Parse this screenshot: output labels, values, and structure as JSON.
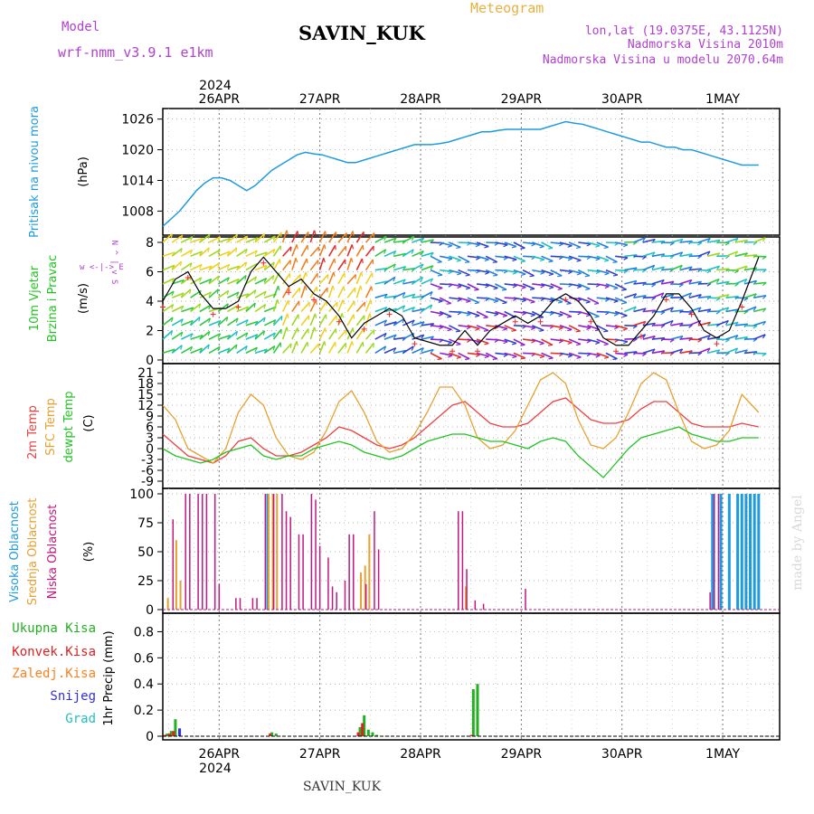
{
  "header": {
    "model_label": "Model",
    "model_name": "wrf-nmm_v3.9.1  e1km",
    "station": "SAVIN_KUK",
    "app_title": "Meteogram",
    "lonlat": "lon,lat (19.0375E, 43.1125N)",
    "altitude": "Nadmorska Visina 2010m",
    "model_altitude": "Nadmorska Visina u modelu 2070.64m"
  },
  "footer": {
    "station": "SAVIN_KUK",
    "watermark": "made by Angel"
  },
  "colors": {
    "pressure": "#1e9be0",
    "wind_speed": "#000000",
    "gust": "#ff2020",
    "temp": "#ef4040",
    "sfc_temp": "#e8a030",
    "dewpt": "#22c422",
    "high_cloud": "#1e9be0",
    "mid_cloud": "#e8a030",
    "low_cloud": "#c2187f",
    "total_precip": "#22b022",
    "conv_precip": "#e02020",
    "frz_precip": "#ff8020",
    "snow": "#3030e0",
    "graupel": "#20c0c0",
    "title_purple": "#b040d0",
    "title_gold": "#e8b040"
  },
  "axis": {
    "year": "2024",
    "dates": [
      "26APR",
      "27APR",
      "28APR",
      "29APR",
      "30APR",
      "1MAY"
    ],
    "bottom_year": "2024"
  },
  "panels": {
    "pressure": {
      "label_main": "Pritisak na nivou mora",
      "label_unit": "(hPa)",
      "ticks": [
        "1026",
        "1020",
        "1014",
        "1008"
      ]
    },
    "wind": {
      "label_1": "10m Vjetar",
      "label_2": "Brzina i Pravac",
      "label_unit": "(m/s)",
      "compass": "w <-|-> E",
      "compass_ns": "N ^ | v S",
      "ticks": [
        "8",
        "6",
        "4",
        "2",
        "0"
      ]
    },
    "temp": {
      "label_1": "2m Temp",
      "label_2": "SFC Temp",
      "label_3": "dewpt Temp",
      "label_unit": "(C)",
      "ticks": [
        "21",
        "18",
        "15",
        "12",
        "9",
        "6",
        "3",
        "0",
        "-3",
        "-6",
        "-9"
      ]
    },
    "cloud": {
      "label_1": "Visoka Oblacnost",
      "label_2": "Srednja Oblacnost",
      "label_3": "Niska Oblacnost",
      "label_unit": "(%)",
      "ticks": [
        "100",
        "75",
        "50",
        "25",
        "0"
      ]
    },
    "precip": {
      "legend": [
        "Ukupna Kisa",
        "Konvek.Kisa",
        "Zaledj.Kisa",
        "Snijeg",
        "Grad"
      ],
      "label_unit": "1hr Precip (mm)",
      "ticks": [
        "0.8",
        "0.6",
        "0.4",
        "0.2",
        "0"
      ]
    }
  },
  "chart_data": [
    {
      "type": "line",
      "name": "pressure",
      "ylim": [
        1004,
        1027
      ],
      "x_hours": [
        0,
        2,
        4,
        6,
        8,
        10,
        12,
        14,
        16,
        18,
        20,
        22,
        24,
        26,
        28,
        30,
        32,
        34,
        36,
        38,
        40,
        42,
        44,
        46,
        48,
        50,
        52,
        54,
        56,
        58,
        60,
        62,
        64,
        66,
        68,
        70,
        72,
        74,
        76,
        78,
        80,
        82,
        84,
        86,
        88,
        90,
        92,
        94,
        96,
        98,
        100,
        102,
        104,
        106,
        108,
        110,
        112,
        114,
        116,
        118,
        120,
        122,
        124,
        126,
        128,
        130,
        132,
        134,
        136,
        138,
        140,
        142
      ],
      "values": [
        1005,
        1006.5,
        1008,
        1010,
        1012,
        1013.5,
        1014.5,
        1014.5,
        1014,
        1013,
        1012,
        1013,
        1014.5,
        1016,
        1017,
        1018,
        1019,
        1019.5,
        1019.2,
        1019,
        1018.5,
        1018,
        1017.5,
        1017.5,
        1018,
        1018.5,
        1019,
        1019.5,
        1020,
        1020.5,
        1021,
        1021,
        1021,
        1021.2,
        1021.5,
        1022,
        1022.5,
        1023,
        1023.5,
        1023.5,
        1023.8,
        1024,
        1024,
        1024,
        1024,
        1024,
        1024.5,
        1025,
        1025.5,
        1025.2,
        1025,
        1024.5,
        1024,
        1023.5,
        1023,
        1022.5,
        1022,
        1021.5,
        1021.5,
        1021,
        1020.5,
        1020.5,
        1020,
        1020,
        1019.5,
        1019,
        1018.5,
        1018,
        1017.5,
        1017,
        1017,
        1017
      ]
    },
    {
      "type": "line",
      "name": "wind_speed",
      "ylim": [
        0,
        8
      ],
      "x_hours": [
        0,
        3,
        6,
        9,
        12,
        15,
        18,
        21,
        24,
        27,
        30,
        33,
        36,
        39,
        42,
        45,
        48,
        51,
        54,
        57,
        60,
        66,
        69,
        72,
        75,
        78,
        84,
        87,
        90,
        93,
        96,
        99,
        102,
        105,
        108,
        111,
        114,
        117,
        120,
        123,
        126,
        129,
        132,
        135,
        138,
        142
      ],
      "values": [
        4,
        5.5,
        6,
        4.5,
        3.5,
        3.5,
        4,
        6,
        7,
        6,
        5,
        5.5,
        4.5,
        4,
        3,
        1.5,
        2.5,
        3,
        3.5,
        3,
        1.5,
        1,
        1,
        2,
        1,
        2,
        3,
        2.5,
        3,
        4,
        4.5,
        4,
        3,
        1.5,
        1,
        1,
        2,
        3,
        4.5,
        4.5,
        3.5,
        2,
        1.5,
        2,
        4,
        7
      ]
    },
    {
      "type": "line",
      "name": "temperature",
      "ylim": [
        -10,
        22
      ],
      "x_hours": [
        0,
        3,
        6,
        9,
        12,
        15,
        18,
        21,
        24,
        27,
        30,
        33,
        36,
        39,
        42,
        45,
        48,
        51,
        54,
        57,
        60,
        63,
        66,
        69,
        72,
        75,
        78,
        81,
        84,
        87,
        90,
        93,
        96,
        99,
        102,
        105,
        108,
        111,
        114,
        117,
        120,
        123,
        126,
        129,
        132,
        135,
        138,
        142
      ],
      "series": [
        {
          "name": "2m Temp",
          "values": [
            4,
            1,
            -2,
            -3,
            -4,
            -2,
            2,
            3,
            0,
            -2,
            -2,
            -1,
            1,
            3,
            6,
            5,
            3,
            1,
            0,
            1,
            3,
            6,
            9,
            12,
            13,
            10,
            7,
            6,
            6,
            7,
            10,
            13,
            14,
            11,
            8,
            7,
            7,
            8,
            11,
            13,
            13,
            10,
            7,
            6,
            6,
            6,
            7,
            6
          ]
        },
        {
          "name": "SFC Temp",
          "values": [
            12,
            8,
            0,
            -2,
            -4,
            0,
            10,
            15,
            12,
            3,
            -2,
            -3,
            -1,
            5,
            13,
            16,
            10,
            2,
            -1,
            0,
            4,
            10,
            17,
            17,
            12,
            3,
            0,
            1,
            5,
            12,
            19,
            21,
            18,
            8,
            1,
            0,
            3,
            10,
            18,
            21,
            19,
            10,
            2,
            0,
            1,
            5,
            15,
            10
          ]
        },
        {
          "name": "dewpt Temp",
          "values": [
            0,
            -2,
            -3,
            -4,
            -3,
            -1,
            0,
            1,
            -2,
            -3,
            -2,
            -2,
            0,
            1,
            2,
            1,
            -1,
            -2,
            -3,
            -2,
            0,
            2,
            3,
            4,
            4,
            3,
            2,
            2,
            1,
            0,
            2,
            3,
            2,
            -2,
            -5,
            -8,
            -4,
            0,
            3,
            4,
            5,
            6,
            4,
            3,
            2,
            2,
            3,
            3
          ]
        }
      ]
    },
    {
      "type": "bar",
      "name": "cloud",
      "ylim": [
        0,
        100
      ],
      "series": [
        {
          "name": "Visoka Oblacnost",
          "x_hours": [
            25,
            131,
            133,
            135,
            137,
            138,
            139,
            140,
            141,
            142
          ],
          "values": [
            100,
            100,
            100,
            100,
            100,
            100,
            100,
            100,
            100,
            100
          ]
        },
        {
          "name": "Srednja Oblacnost",
          "x_hours": [
            1,
            3,
            4,
            25,
            26,
            27,
            47,
            48,
            49,
            72
          ],
          "values": [
            10,
            60,
            25,
            100,
            100,
            100,
            32,
            38,
            65,
            20
          ]
        },
        {
          "name": "Niska Oblacnost",
          "x_hours": [
            2,
            5,
            6,
            8,
            9,
            10,
            12,
            13,
            17,
            18,
            21,
            22,
            24,
            26,
            28,
            29,
            30,
            32,
            33,
            35,
            36,
            37,
            39,
            40,
            41,
            43,
            44,
            45,
            48,
            50,
            51,
            70,
            71,
            72,
            74,
            76,
            86,
            130,
            131,
            132
          ],
          "values": [
            78,
            100,
            100,
            100,
            100,
            100,
            100,
            22,
            10,
            10,
            10,
            10,
            100,
            100,
            100,
            85,
            80,
            65,
            65,
            100,
            95,
            55,
            45,
            20,
            15,
            25,
            65,
            65,
            22,
            85,
            52,
            85,
            85,
            35,
            8,
            5,
            18,
            15,
            100,
            100
          ]
        }
      ]
    },
    {
      "type": "bar",
      "name": "precip",
      "ylim": [
        0,
        0.9
      ],
      "series": [
        {
          "name": "Ukupna Kisa",
          "x_hours": [
            1,
            2,
            3,
            4,
            26,
            27,
            47,
            48,
            49,
            50,
            51,
            74,
            75
          ],
          "values": [
            0.02,
            0.04,
            0.13,
            0.05,
            0.03,
            0.02,
            0.07,
            0.16,
            0.05,
            0.03,
            0.01,
            0.36,
            0.4
          ]
        },
        {
          "name": "Konvek.Kisa",
          "x_hours": [
            1,
            2,
            3,
            26,
            47,
            48,
            74
          ],
          "values": [
            0.01,
            0.02,
            0.04,
            0.02,
            0.03,
            0.1,
            0.01
          ]
        },
        {
          "name": "Zaledj.Kisa",
          "x_hours": [],
          "values": []
        },
        {
          "name": "Snijeg",
          "x_hours": [
            4
          ],
          "values": [
            0.06
          ]
        },
        {
          "name": "Grad",
          "x_hours": [],
          "values": []
        }
      ]
    }
  ]
}
